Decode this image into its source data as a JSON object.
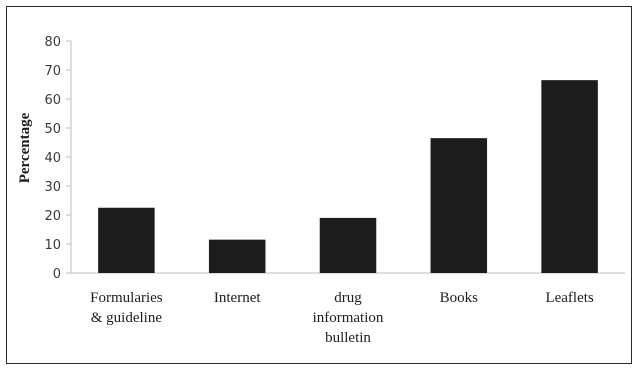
{
  "chart_data": {
    "type": "bar",
    "title": "",
    "xlabel": "",
    "ylabel": "Percentage",
    "ylim": [
      0,
      80
    ],
    "yticks": [
      0,
      10,
      20,
      30,
      40,
      50,
      60,
      70,
      80
    ],
    "grid": false,
    "categories": [
      [
        "Formularies",
        "& guideline"
      ],
      [
        "Internet"
      ],
      [
        "drug",
        "information",
        "bulletin"
      ],
      [
        "Books"
      ],
      [
        "Leaflets"
      ]
    ],
    "values": [
      22.5,
      11.5,
      19,
      46.5,
      66.5
    ],
    "bar_color": "#1c1c1c",
    "axis_color": "#bdbdbd"
  }
}
